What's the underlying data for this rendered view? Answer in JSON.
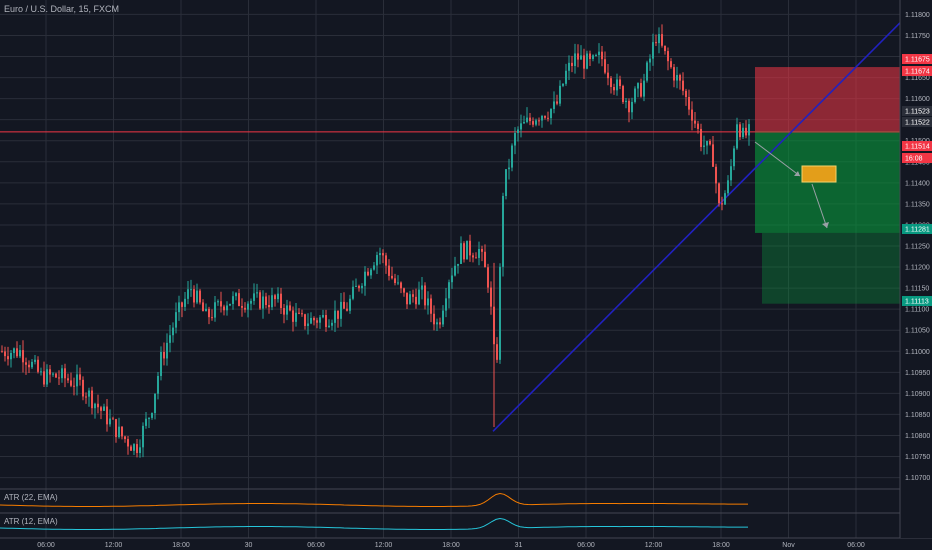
{
  "header": {
    "title": "Euro / U.S. Dollar, 15, FXCM"
  },
  "indicators": [
    {
      "label": "ATR (22, EMA)",
      "color": "#f57c00"
    },
    {
      "label": "ATR (12, EMA)",
      "color": "#26c6da"
    }
  ],
  "price_axis": {
    "labels": [
      "1.11800",
      "1.11750",
      "1.11700",
      "1.11650",
      "1.11600",
      "1.11550",
      "1.11500",
      "1.11450",
      "1.11400",
      "1.11350",
      "1.11300",
      "1.11250",
      "1.11200",
      "1.11150",
      "1.11100",
      "1.11050",
      "1.11000",
      "1.10950",
      "1.10900",
      "1.10850",
      "1.10800",
      "1.10750",
      "1.10700"
    ],
    "tags": [
      {
        "text": "1.11675",
        "color": "#f23645"
      },
      {
        "text": "1.11674",
        "color": "#f23645"
      },
      {
        "text": "1.11523",
        "color": "#2a2e39"
      },
      {
        "text": "1.11522",
        "color": "#2a2e39"
      },
      {
        "text": "1.11514",
        "color": "#f23645"
      },
      {
        "text": "16:08",
        "color": "#f23645"
      },
      {
        "text": "1.11281",
        "color": "#089981"
      },
      {
        "text": "1.11113",
        "color": "#089981"
      }
    ]
  },
  "time_axis": {
    "labels": [
      "06:00",
      "12:00",
      "18:00",
      "30",
      "06:00",
      "12:00",
      "18:00",
      "31",
      "06:00",
      "12:00",
      "18:00",
      "Nov",
      "06:00"
    ]
  },
  "colors": {
    "up": "#26a69a",
    "down": "#ef5350",
    "background": "#131722",
    "grid": "#2a2e39"
  },
  "chart_data": {
    "type": "candlestick",
    "symbol": "EUR/USD",
    "timeframe": "15",
    "y_range": [
      1.1068,
      1.1182
    ],
    "trendline": {
      "from": 1.1081,
      "to": 1.1178
    },
    "short_position": {
      "entry": 1.11523,
      "stop": 1.11675,
      "target_1": 1.11281,
      "target_2": 1.11113
    },
    "horizontal_line": 1.11521,
    "current_price": 1.11514
  }
}
